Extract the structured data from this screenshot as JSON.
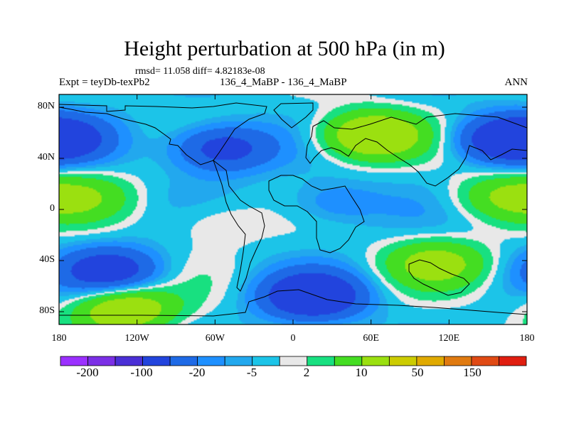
{
  "chart_data": {
    "type": "heatmap",
    "title": "Height perturbation at 500 hPa (in m)",
    "stats_line": "rmsd= 11.058 diff= 4.82183e-08",
    "experiment_label": "Expt = teyDb-texPb2",
    "case_label": "136_4_MaBP - 136_4_MaBP",
    "season_label": "ANN",
    "x_axis": {
      "range": [
        -180,
        180
      ],
      "ticks": [
        -180,
        -120,
        -60,
        0,
        60,
        120,
        180
      ],
      "tick_labels": [
        "180",
        "120W",
        "60W",
        "0",
        "60E",
        "120E",
        "180"
      ]
    },
    "y_axis": {
      "range": [
        -90,
        90
      ],
      "ticks": [
        80,
        40,
        0,
        -40,
        -80
      ],
      "tick_labels": [
        "80N",
        "40N",
        "0",
        "40S",
        "80S"
      ]
    },
    "levels": [
      -200,
      -100,
      -50,
      -20,
      -10,
      -5,
      -2,
      2,
      5,
      10,
      20,
      50,
      100,
      150
    ],
    "colorbar_labels": [
      "-200",
      "-100",
      "-20",
      "-5",
      "2",
      "10",
      "50",
      "150"
    ],
    "colorbar_colors": [
      "#9b30ff",
      "#7b2fe6",
      "#4a2fd6",
      "#2244dd",
      "#1e6ae6",
      "#1e90ff",
      "#22a8ee",
      "#1cc4e8",
      "#e8e8e8",
      "#18e080",
      "#44dd22",
      "#9be010",
      "#cccc00",
      "#e0aa00",
      "#e07a10",
      "#e04a14",
      "#e01e10"
    ],
    "field_features": [
      {
        "lon": 15,
        "lat": -68,
        "sign": -1,
        "magnitude": 40
      },
      {
        "lon": -55,
        "lat": 48,
        "sign": -1,
        "magnitude": 30
      },
      {
        "lon": -140,
        "lat": -48,
        "sign": -1,
        "magnitude": 30
      },
      {
        "lon": 160,
        "lat": 55,
        "sign": -1,
        "magnitude": 25
      },
      {
        "lon": -178,
        "lat": 55,
        "sign": -1,
        "magnitude": 22
      },
      {
        "lon": 30,
        "lat": 5,
        "sign": -1,
        "magnitude": 12
      },
      {
        "lon": 60,
        "lat": 58,
        "sign": 1,
        "magnitude": 40
      },
      {
        "lon": -130,
        "lat": -78,
        "sign": 1,
        "magnitude": 35
      },
      {
        "lon": 110,
        "lat": -42,
        "sign": 1,
        "magnitude": 25
      },
      {
        "lon": 160,
        "lat": 10,
        "sign": 1,
        "magnitude": 18
      },
      {
        "lon": -160,
        "lat": 10,
        "sign": 1,
        "magnitude": 15
      },
      {
        "lon": -60,
        "lat": -10,
        "sign": 1,
        "magnitude": 8
      }
    ]
  }
}
